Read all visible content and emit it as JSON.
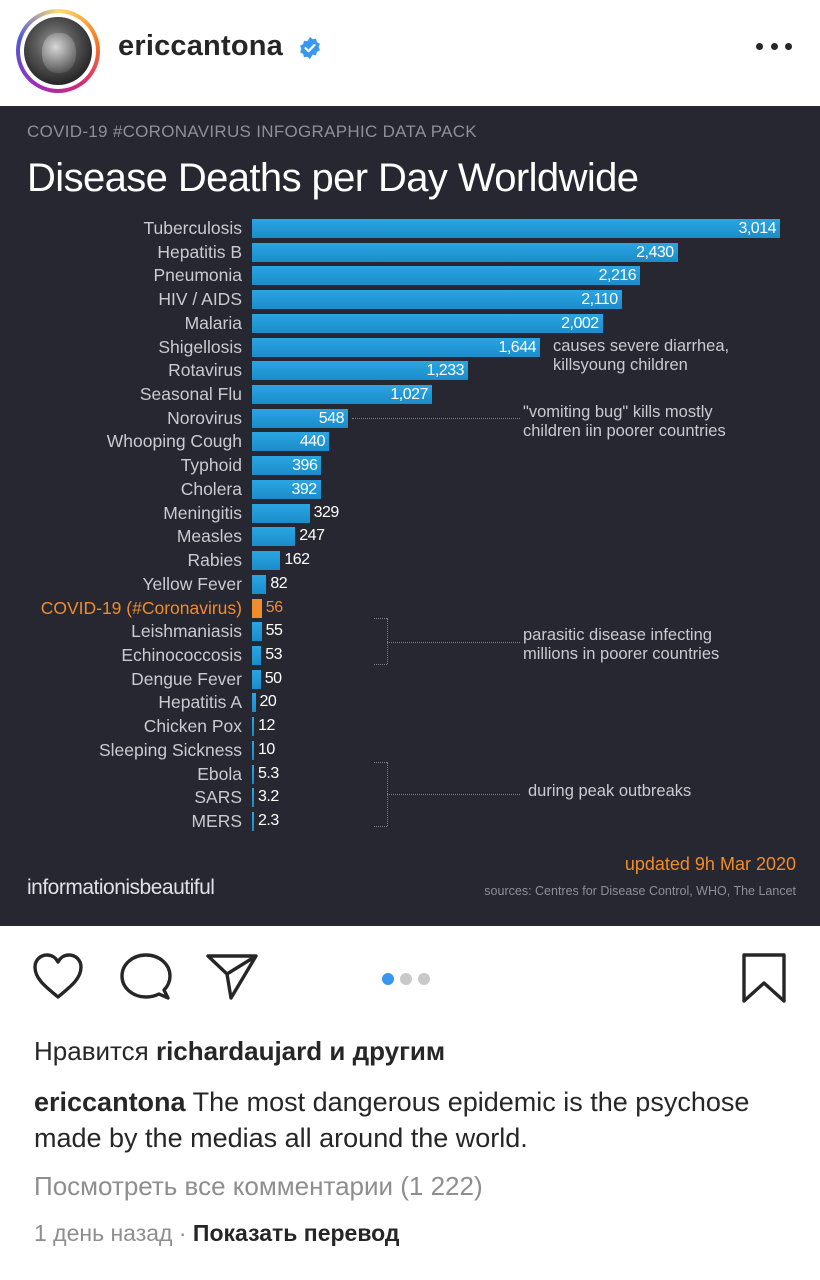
{
  "header": {
    "username": "ericcantona",
    "verified_icon": "verified-badge-icon",
    "more_icon": "more-dots-icon"
  },
  "infographic": {
    "pack_title": "COVID-19 #CORONAVIRUS INFOGRAPHIC DATA PACK",
    "title": "Disease Deaths per Day Worldwide",
    "brand": "informationisbeautiful",
    "updated": "updated 9h Mar 2020",
    "sources": "sources: Centres for Disease Control, WHO, The Lancet",
    "annotations": {
      "shigellosis": [
        "causes severe diarrhea,",
        "killsyoung children"
      ],
      "norovirus": [
        "\"vomiting bug\" kills mostly",
        "children iin poorer countries"
      ],
      "parasitic": [
        "parasitic disease infecting",
        "millions in poorer countries"
      ],
      "outbreaks": [
        "during peak outbreaks"
      ]
    }
  },
  "chart_data": {
    "type": "bar",
    "orientation": "horizontal",
    "title": "Disease Deaths per Day Worldwide",
    "categories": [
      "Tuberculosis",
      "Hepatitis B",
      "Pneumonia",
      "HIV / AIDS",
      "Malaria",
      "Shigellosis",
      "Rotavirus",
      "Seasonal Flu",
      "Norovirus",
      "Whooping Cough",
      "Typhoid",
      "Cholera",
      "Meningitis",
      "Measles",
      "Rabies",
      "Yellow Fever",
      "COVID-19 (#Coronavirus)",
      "Leishmaniasis",
      "Echinococcosis",
      "Dengue Fever",
      "Hepatitis A",
      "Chicken Pox",
      "Sleeping Sickness",
      "Ebola",
      "SARS",
      "MERS"
    ],
    "values": [
      3014,
      2430,
      2216,
      2110,
      2002,
      1644,
      1233,
      1027,
      548,
      440,
      396,
      392,
      329,
      247,
      162,
      82,
      56,
      55,
      53,
      50,
      20,
      12,
      10,
      5.3,
      3.2,
      2.3
    ],
    "value_labels": [
      "3,014",
      "2,430",
      "2,216",
      "2,110",
      "2,002",
      "1,644",
      "1,233",
      "1,027",
      "548",
      "440",
      "396",
      "392",
      "329",
      "247",
      "162",
      "82",
      "56",
      "55",
      "53",
      "50",
      "20",
      "12",
      "10",
      "5.3",
      "3.2",
      "2.3"
    ],
    "highlight": "COVID-19 (#Coronavirus)",
    "colors": {
      "bar": "#1b8cc9",
      "highlight": "#f08c2e",
      "background": "#262730"
    },
    "xlim": [
      0,
      3014
    ],
    "grid": false
  },
  "actions": {
    "like_icon": "heart-icon",
    "comment_icon": "comment-icon",
    "share_icon": "send-icon",
    "save_icon": "bookmark-icon",
    "carousel_count": 3,
    "carousel_active": 0
  },
  "likes": {
    "prefix": "Нравится",
    "user": "richardaujard",
    "suffix": "и другим"
  },
  "caption": {
    "user": "ericcantona",
    "text": "The most dangerous epidemic is the psychose made by the medias all around the world."
  },
  "comments_link": "Посмотреть все комментарии (1 222)",
  "meta": {
    "time": "1 день назад",
    "separator": "·",
    "translate": "Показать перевод"
  }
}
